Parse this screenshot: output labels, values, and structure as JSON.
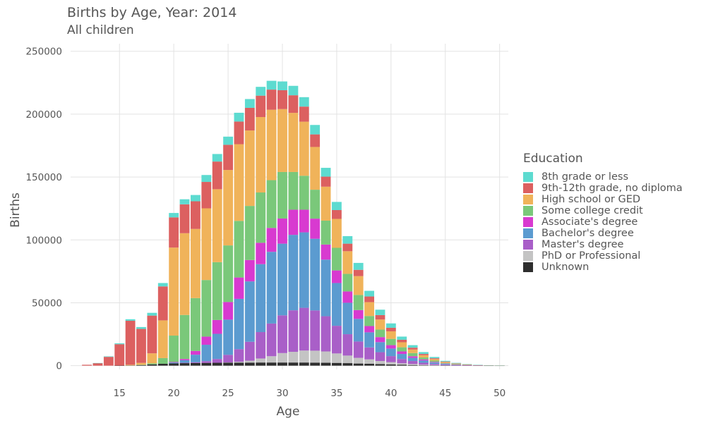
{
  "header": {
    "title": "Births by Age, Year: 2014",
    "subtitle": "All children"
  },
  "legend": {
    "title": "Education",
    "items": [
      {
        "label": "8th grade or less",
        "color": "#5ddbd0"
      },
      {
        "label": "9th-12th grade, no diploma",
        "color": "#dc6060"
      },
      {
        "label": "High school or GED",
        "color": "#f0b35a"
      },
      {
        "label": "Some college credit",
        "color": "#7ac87a"
      },
      {
        "label": "Associate's degree",
        "color": "#d83ad0"
      },
      {
        "label": "Bachelor's degree",
        "color": "#5b9bd0"
      },
      {
        "label": "Master's degree",
        "color": "#a95fc8"
      },
      {
        "label": "PhD or Professional",
        "color": "#c4c4c4"
      },
      {
        "label": "Unknown",
        "color": "#2e2e2e"
      }
    ]
  },
  "chart_data": {
    "type": "bar",
    "stacked": true,
    "xlabel": "Age",
    "ylabel": "Births",
    "xlim": [
      10.5,
      50.8
    ],
    "ylim": [
      -3000,
      256000
    ],
    "x_ticks": [
      15,
      20,
      25,
      30,
      35,
      40,
      45,
      50
    ],
    "y_ticks": [
      0,
      50000,
      100000,
      150000,
      200000,
      250000
    ],
    "y_tick_labels": [
      "0",
      "50000",
      "100000",
      "150000",
      "200000",
      "250000"
    ],
    "grid": true,
    "legend_position": "right",
    "categories": [
      12,
      13,
      14,
      15,
      16,
      17,
      18,
      19,
      20,
      21,
      22,
      23,
      24,
      25,
      26,
      27,
      28,
      29,
      30,
      31,
      32,
      33,
      34,
      35,
      36,
      37,
      38,
      39,
      40,
      41,
      42,
      43,
      44,
      45,
      46,
      47,
      48,
      49,
      50
    ],
    "series": [
      {
        "name": "Unknown",
        "values": [
          0,
          0,
          0,
          50,
          200,
          500,
          1000,
          1500,
          1800,
          2000,
          2100,
          2200,
          2300,
          2400,
          2400,
          2400,
          2500,
          2500,
          2500,
          2500,
          2500,
          2400,
          2300,
          2200,
          2000,
          1700,
          1500,
          1200,
          1000,
          800,
          500,
          300,
          200,
          100,
          50,
          30,
          20,
          10,
          5
        ]
      },
      {
        "name": "PhD or Professional",
        "values": [
          0,
          0,
          0,
          0,
          0,
          0,
          0,
          0,
          0,
          0,
          0,
          0,
          0,
          200,
          700,
          1600,
          3200,
          5000,
          7500,
          8500,
          9500,
          9500,
          9000,
          7500,
          6000,
          4500,
          3500,
          2500,
          1800,
          1100,
          800,
          500,
          300,
          150,
          80,
          40,
          20,
          10,
          5
        ]
      },
      {
        "name": "Master's degree",
        "values": [
          0,
          0,
          0,
          0,
          0,
          0,
          0,
          0,
          0,
          300,
          600,
          1400,
          3000,
          6000,
          10000,
          15000,
          21000,
          26000,
          30000,
          33000,
          34000,
          32000,
          28000,
          22000,
          17000,
          13000,
          9500,
          7000,
          4800,
          3400,
          2400,
          1500,
          900,
          500,
          300,
          150,
          80,
          40,
          20
        ]
      },
      {
        "name": "Bachelor's degree",
        "values": [
          0,
          0,
          0,
          0,
          0,
          0,
          0,
          0,
          700,
          2000,
          6000,
          13000,
          20000,
          28000,
          40000,
          48000,
          54000,
          57000,
          57000,
          60000,
          60000,
          57000,
          45000,
          34000,
          25000,
          18000,
          12000,
          8000,
          6000,
          4000,
          2500,
          1800,
          1100,
          600,
          300,
          150,
          80,
          40,
          20
        ]
      },
      {
        "name": "Associate's degree",
        "values": [
          0,
          0,
          0,
          0,
          0,
          0,
          0,
          0,
          400,
          1000,
          3000,
          6500,
          11000,
          14000,
          17000,
          17000,
          17000,
          19000,
          20000,
          20000,
          18000,
          16000,
          12000,
          10000,
          9000,
          7000,
          5000,
          4000,
          2700,
          2000,
          1300,
          900,
          500,
          300,
          150,
          80,
          40,
          20,
          10
        ]
      },
      {
        "name": "Some college credit",
        "values": [
          0,
          0,
          0,
          0,
          0,
          200,
          800,
          4500,
          21000,
          35000,
          42000,
          45000,
          46000,
          45000,
          45000,
          43000,
          40000,
          38000,
          37000,
          30000,
          27000,
          23000,
          19000,
          18000,
          14000,
          12000,
          8000,
          6000,
          5000,
          3300,
          2500,
          1500,
          1000,
          500,
          300,
          150,
          80,
          40,
          20
        ]
      },
      {
        "name": "High school or GED",
        "values": [
          0,
          0,
          0,
          0,
          500,
          1500,
          8000,
          30000,
          70000,
          65000,
          55000,
          57000,
          58000,
          60000,
          61000,
          60000,
          60000,
          56000,
          50000,
          47000,
          43000,
          34000,
          27000,
          23000,
          18000,
          15000,
          11000,
          8000,
          6000,
          4000,
          2800,
          1800,
          1200,
          700,
          400,
          200,
          100,
          50,
          30
        ]
      },
      {
        "name": "9th-12th grade, no diploma",
        "values": [
          700,
          2000,
          7000,
          17000,
          35000,
          27000,
          30000,
          27000,
          24000,
          23000,
          22000,
          21000,
          22000,
          20000,
          18000,
          18000,
          17000,
          16000,
          15000,
          14000,
          12000,
          10000,
          8000,
          7000,
          6000,
          5000,
          4500,
          3500,
          2800,
          2000,
          1500,
          1000,
          700,
          400,
          250,
          120,
          60,
          30,
          15
        ]
      },
      {
        "name": "8th grade or less",
        "values": [
          0,
          100,
          400,
          700,
          1200,
          1500,
          2200,
          2700,
          3500,
          4000,
          5000,
          5500,
          6000,
          6500,
          7000,
          7000,
          7000,
          7000,
          7000,
          7500,
          7500,
          7500,
          7000,
          6500,
          6000,
          5500,
          4500,
          4300,
          3500,
          2500,
          2000,
          1500,
          1000,
          600,
          400,
          250,
          150,
          80,
          40
        ]
      }
    ]
  }
}
